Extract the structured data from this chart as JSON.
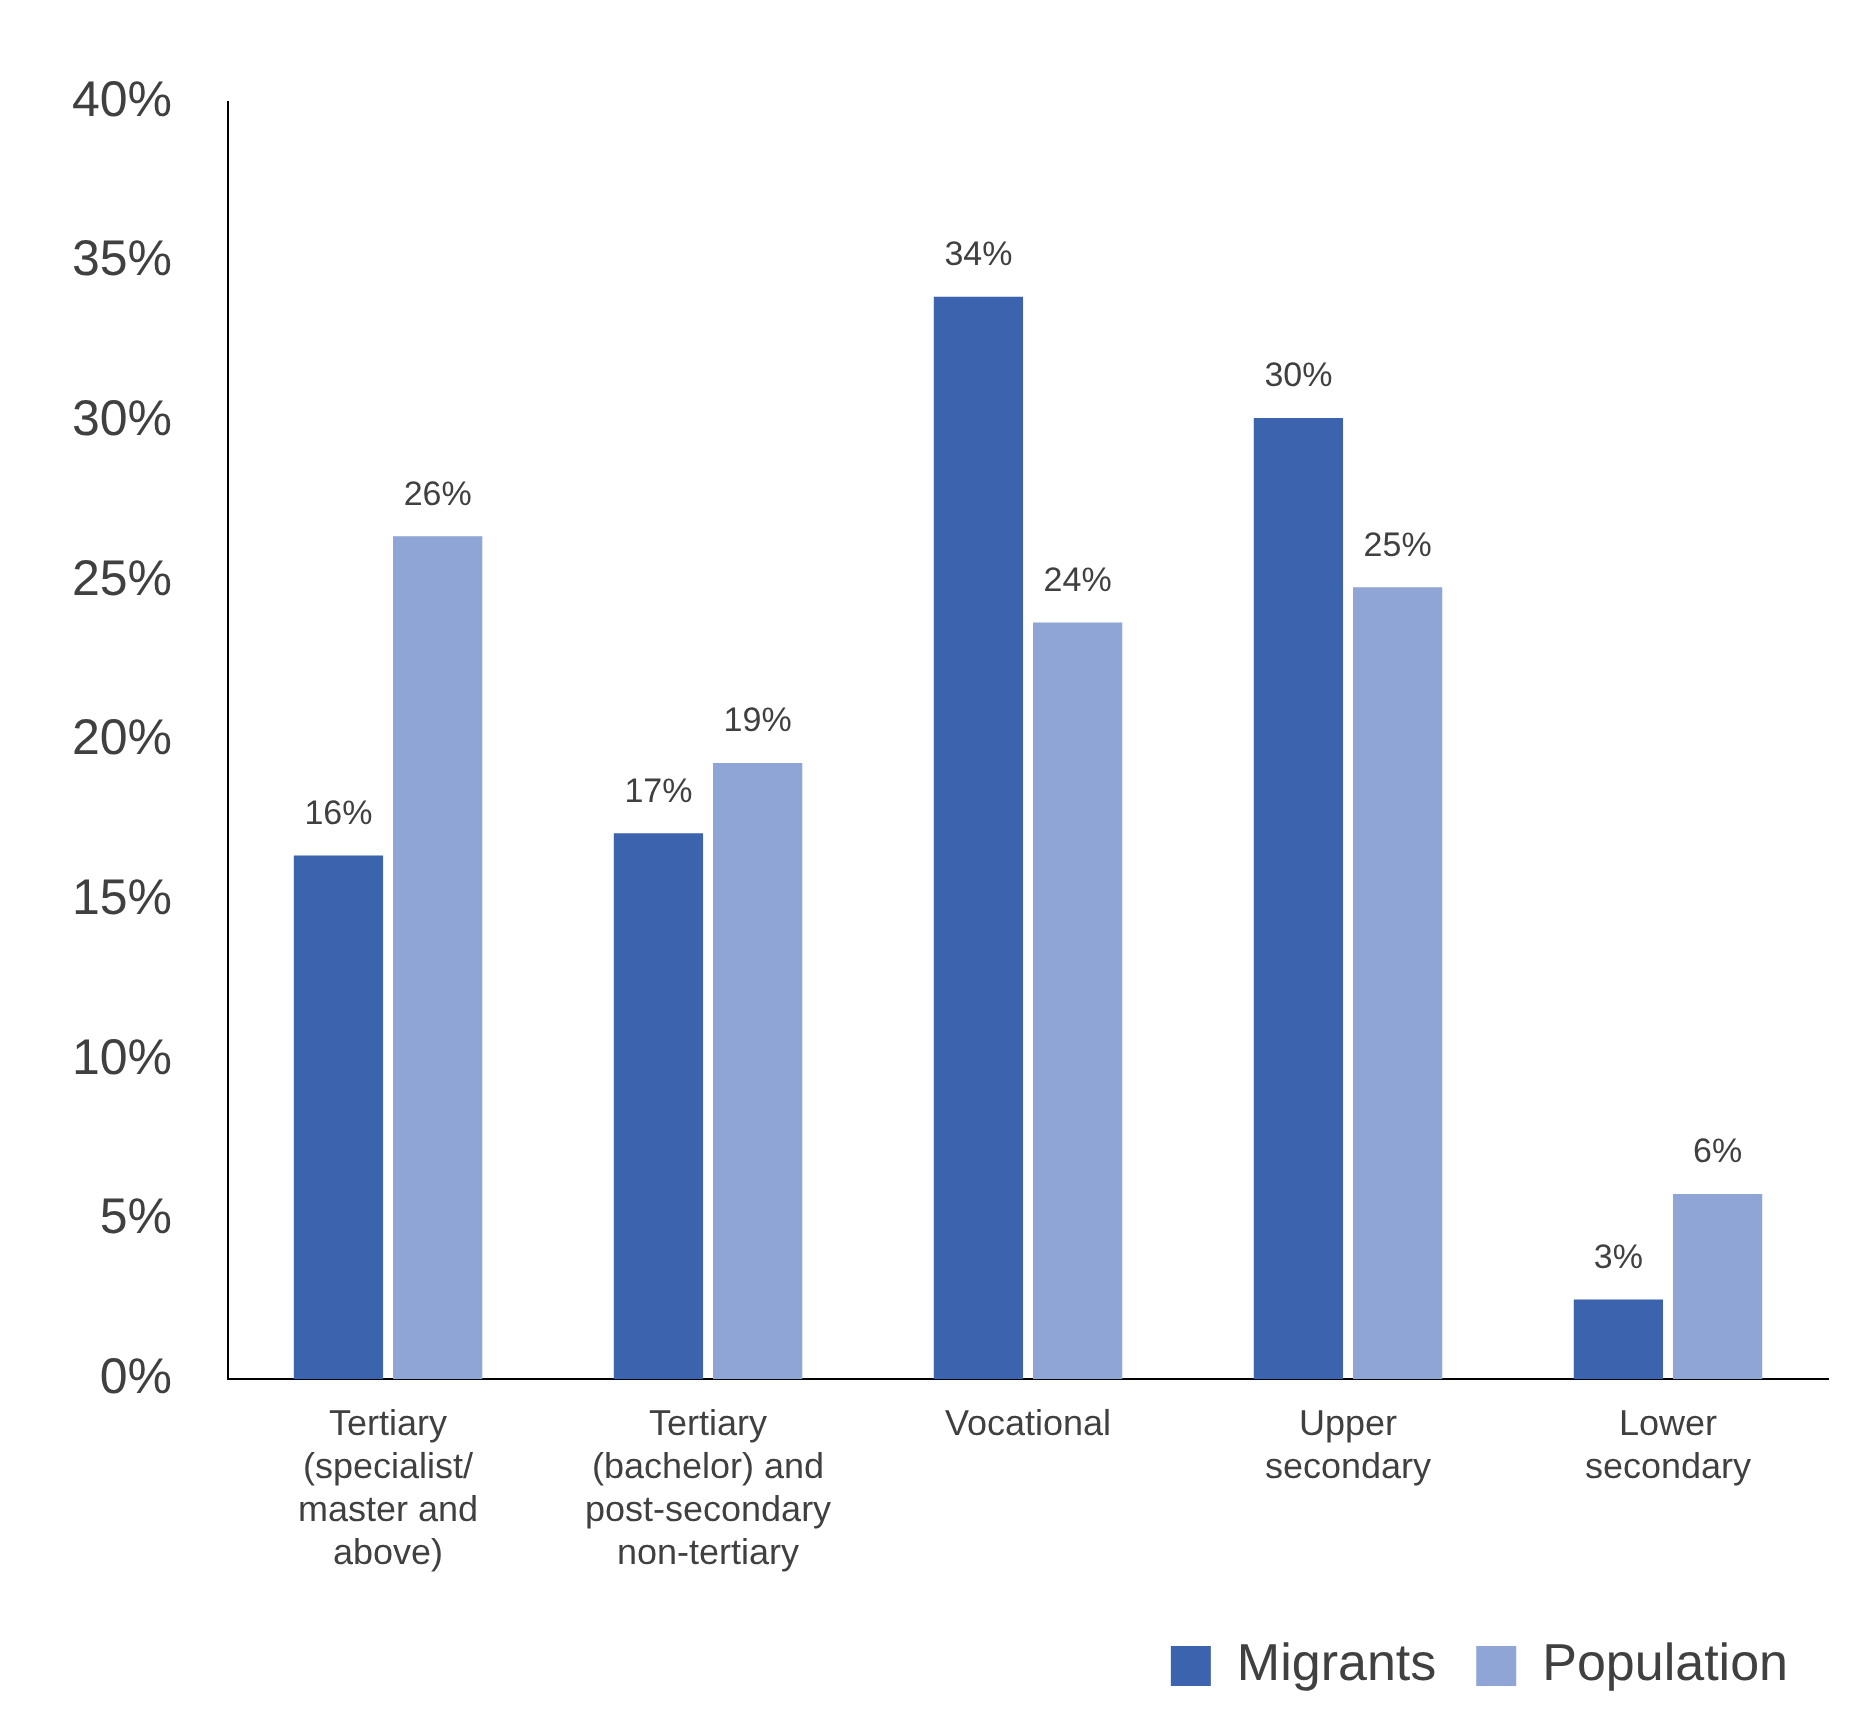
{
  "chart_data": {
    "type": "bar",
    "categories": [
      "Tertiary (specialist/ master and above)",
      "Tertiary (bachelor) and post-secondary non-tertiary",
      "Vocational",
      "Upper secondary",
      "Lower secondary"
    ],
    "series": [
      {
        "name": "Migrants",
        "color": "#3c64ae",
        "values": [
          16.4,
          17.1,
          33.9,
          30.1,
          2.5
        ],
        "value_labels": [
          "16%",
          "17%",
          "34%",
          "30%",
          "3%"
        ]
      },
      {
        "name": "Population",
        "color": "#8fa5d6",
        "values": [
          26.4,
          19.3,
          23.7,
          24.8,
          5.8
        ],
        "value_labels": [
          "26%",
          "19%",
          "24%",
          "25%",
          "6%"
        ]
      }
    ],
    "ylim": [
      0,
      40
    ],
    "yticks": [
      {
        "value": 0,
        "label": "0%"
      },
      {
        "value": 5,
        "label": "5%"
      },
      {
        "value": 10,
        "label": "10%"
      },
      {
        "value": 15,
        "label": "15%"
      },
      {
        "value": 20,
        "label": "20%"
      },
      {
        "value": 25,
        "label": "25%"
      },
      {
        "value": 30,
        "label": "30%"
      },
      {
        "value": 35,
        "label": "35%"
      },
      {
        "value": 40,
        "label": "40%"
      }
    ],
    "grid": false,
    "legend": "bottom right"
  }
}
